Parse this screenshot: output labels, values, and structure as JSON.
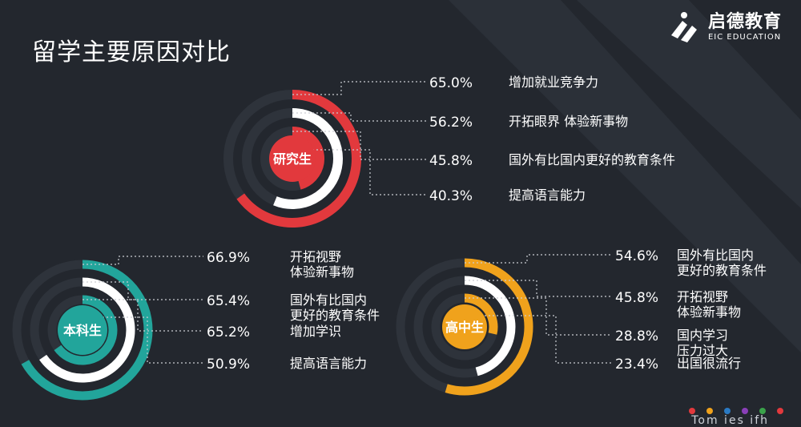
{
  "title": "留学主要原因对比",
  "brand": {
    "name": "启德教育",
    "sub": "EIC EDUCATION",
    "icon": "eic-logo-icon"
  },
  "footer": {
    "text": "Tom ies ifh"
  },
  "dot_colors": [
    "#e2393d",
    "#f0a21c",
    "#2a7ac4",
    "#8a3fb8",
    "#3aa24a",
    "#e2393d"
  ],
  "chart_data": [
    {
      "type": "radial-bar",
      "center_label": "研究生",
      "color": "#e2393d",
      "categories": [
        "增加就业竞争力",
        "开拓眼界 体验新事物",
        "国外有比国内更好的教育条件",
        "提高语言能力"
      ],
      "values": [
        65.0,
        56.2,
        45.8,
        40.3
      ],
      "labels": [
        "65.0%",
        "56.2%",
        "45.8%",
        "40.3%"
      ]
    },
    {
      "type": "radial-bar",
      "center_label": "本科生",
      "color": "#22a59b",
      "categories": [
        "开拓视野\n体验新事物",
        "国外有比国内\n更好的教育条件",
        "增加学识",
        "提高语言能力"
      ],
      "values": [
        66.9,
        65.4,
        65.2,
        50.9
      ],
      "labels": [
        "66.9%",
        "65.4%",
        "65.2%",
        "50.9%"
      ]
    },
    {
      "type": "radial-bar",
      "center_label": "高中生",
      "color": "#f0a21c",
      "categories": [
        "国外有比国内\n更好的教育条件",
        "开拓视野\n体验新事物",
        "国内学习\n压力过大",
        "出国很流行"
      ],
      "values": [
        54.6,
        45.8,
        28.8,
        23.4
      ],
      "labels": [
        "54.6%",
        "45.8%",
        "28.8%",
        "23.4%"
      ]
    }
  ]
}
